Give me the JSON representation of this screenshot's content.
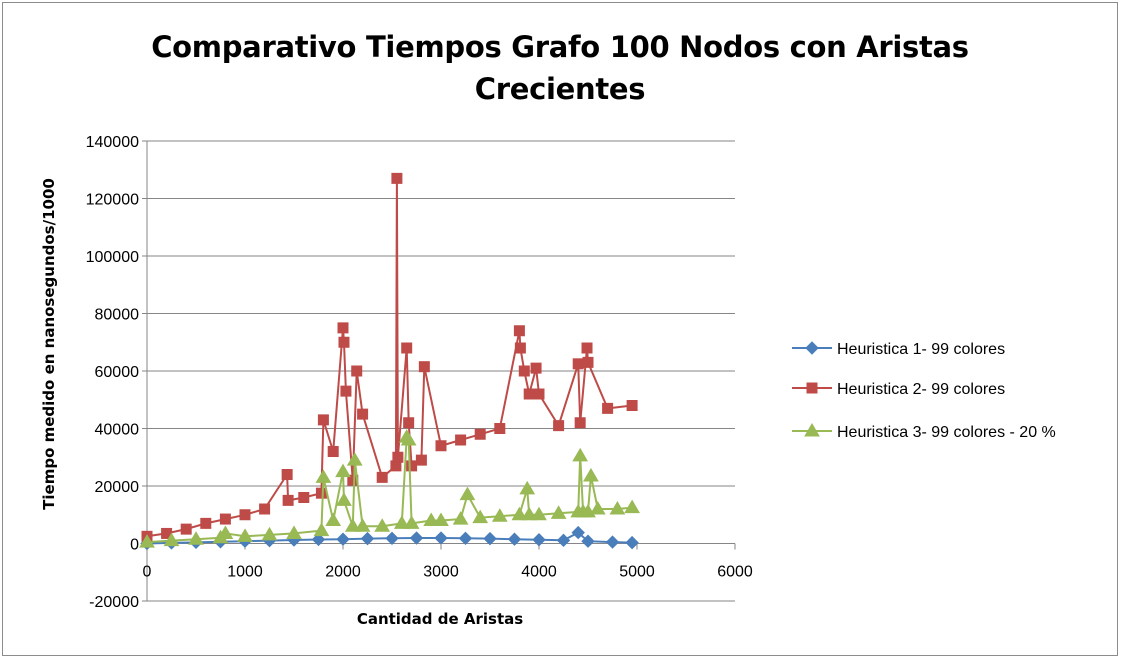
{
  "chart_data": {
    "type": "line",
    "title": "Comparativo Tiempos Grafo 100 Nodos con Aristas Crecientes",
    "xlabel": "Cantidad de Aristas",
    "ylabel": "Tiempo medido en nanosegundos/1000",
    "xlim": [
      0,
      6000
    ],
    "ylim": [
      -20000,
      140000
    ],
    "xticks": [
      "0",
      "1000",
      "2000",
      "3000",
      "4000",
      "5000",
      "6000"
    ],
    "yticks": [
      "-20000",
      "0",
      "20000",
      "40000",
      "60000",
      "80000",
      "100000",
      "120000",
      "140000"
    ],
    "grid": "horizontal",
    "legend_position": "right",
    "series": [
      {
        "name": "Heuristica 1- 99 colores",
        "color": "#4a7ebb",
        "marker": "diamond",
        "x": [
          0,
          250,
          500,
          750,
          1000,
          1250,
          1500,
          1750,
          2000,
          2250,
          2500,
          2750,
          3000,
          3250,
          3500,
          3750,
          4000,
          4250,
          4400,
          4500,
          4750,
          4950
        ],
        "y": [
          0,
          200,
          400,
          600,
          800,
          1000,
          1200,
          1400,
          1500,
          1700,
          1800,
          1900,
          1900,
          1800,
          1700,
          1500,
          1300,
          1100,
          3800,
          800,
          500,
          300
        ]
      },
      {
        "name": "Heuristica 2- 99 colores",
        "color": "#be4b48",
        "marker": "square",
        "x": [
          0,
          200,
          400,
          600,
          800,
          1000,
          1200,
          1430,
          1440,
          1600,
          1780,
          1800,
          1900,
          2000,
          2010,
          2030,
          2100,
          2140,
          2200,
          2400,
          2540,
          2550,
          2560,
          2650,
          2670,
          2700,
          2800,
          2830,
          3000,
          3200,
          3400,
          3600,
          3800,
          3810,
          3850,
          3900,
          3970,
          4000,
          4200,
          4400,
          4420,
          4490,
          4500,
          4700,
          4950
        ],
        "y": [
          2500,
          3500,
          5000,
          7000,
          8500,
          10000,
          12000,
          24000,
          15000,
          16000,
          17500,
          43000,
          32000,
          75000,
          70000,
          53000,
          22000,
          60000,
          45000,
          23000,
          27000,
          127000,
          30000,
          68000,
          42000,
          27000,
          29000,
          61500,
          34000,
          36000,
          38000,
          40000,
          74000,
          68000,
          60000,
          52000,
          61000,
          52000,
          41000,
          62500,
          42000,
          68000,
          63000,
          47000,
          48000
        ]
      },
      {
        "name": "Heuristica 3- 99 colores - 20 %",
        "color": "#98b954",
        "marker": "triangle",
        "x": [
          0,
          250,
          500,
          750,
          800,
          1000,
          1250,
          1500,
          1780,
          1800,
          1900,
          2000,
          2010,
          2100,
          2120,
          2200,
          2400,
          2600,
          2650,
          2670,
          2700,
          2900,
          3000,
          3200,
          3270,
          3400,
          3600,
          3800,
          3880,
          3900,
          4000,
          4200,
          4400,
          4420,
          4450,
          4500,
          4530,
          4600,
          4800,
          4950
        ],
        "y": [
          500,
          1000,
          1500,
          2000,
          3500,
          2500,
          3000,
          3500,
          4500,
          23000,
          8000,
          25000,
          15000,
          6000,
          29000,
          6000,
          6000,
          7000,
          37000,
          36000,
          7000,
          8000,
          8000,
          8500,
          17000,
          9000,
          9500,
          10000,
          19000,
          10000,
          10000,
          10500,
          11000,
          30500,
          11000,
          11000,
          23500,
          12000,
          12000,
          12500
        ]
      }
    ]
  }
}
